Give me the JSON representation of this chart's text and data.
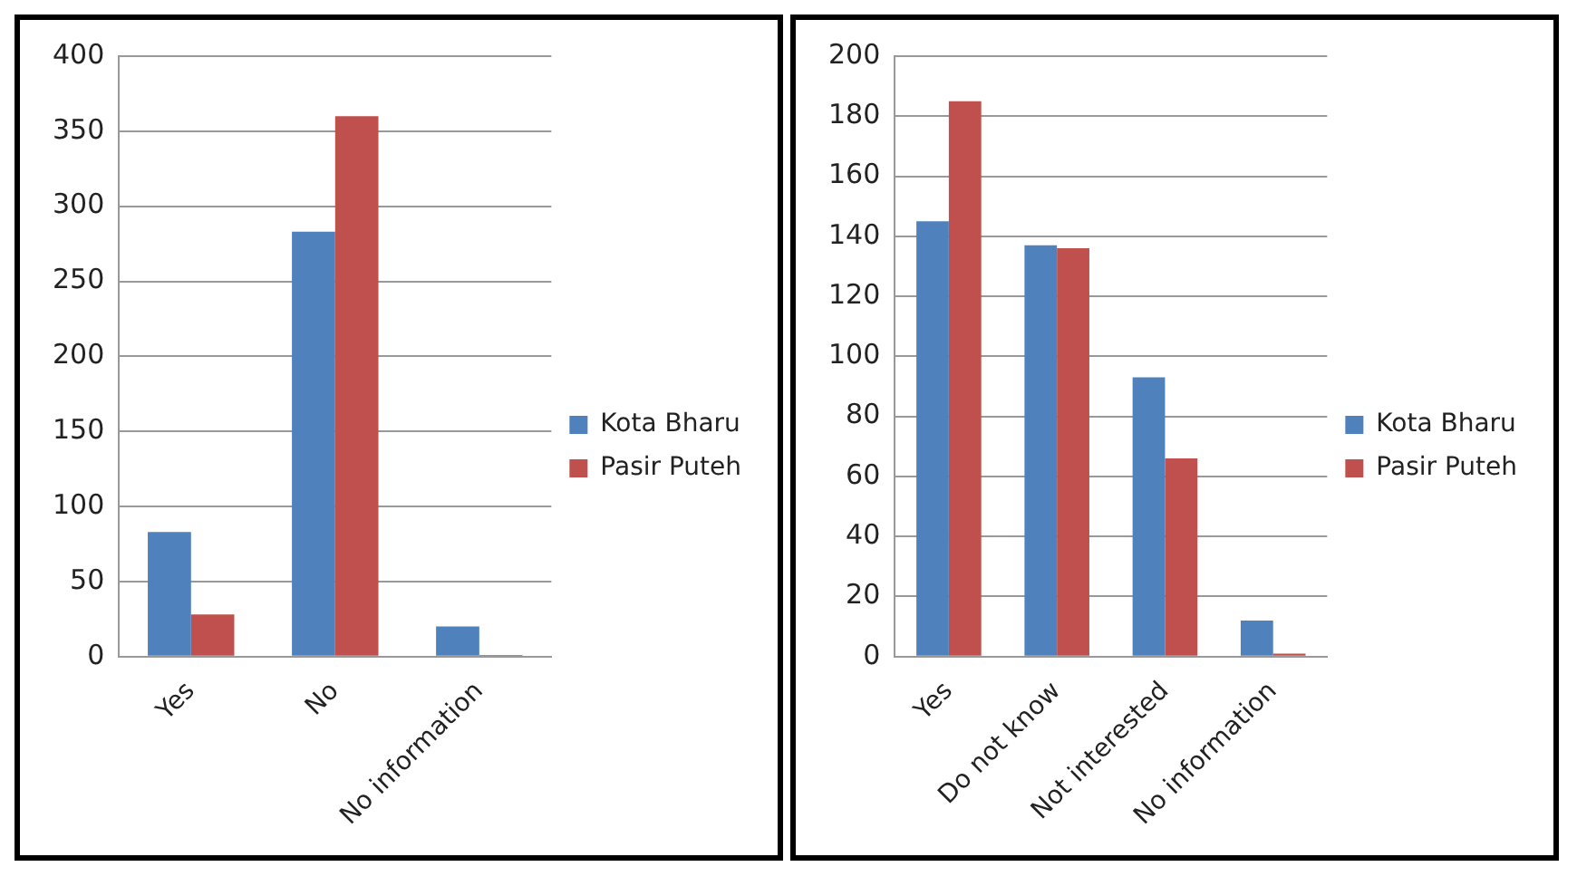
{
  "chart_data": [
    {
      "type": "bar",
      "categories": [
        "Yes",
        "No",
        "No information"
      ],
      "series": [
        {
          "name": "Kota Bharu",
          "color": "#4f81bd",
          "values": [
            83,
            283,
            20
          ]
        },
        {
          "name": "Pasir Puteh",
          "color": "#c0504d",
          "values": [
            28,
            360,
            1
          ]
        }
      ],
      "ylim": [
        0,
        400
      ],
      "yticks": [
        0,
        50,
        100,
        150,
        200,
        250,
        300,
        350,
        400
      ],
      "grid": "y",
      "legend": "right"
    },
    {
      "type": "bar",
      "categories": [
        "Yes",
        "Do not know",
        "Not interested",
        "No information"
      ],
      "series": [
        {
          "name": "Kota Bharu",
          "color": "#4f81bd",
          "values": [
            145,
            137,
            93,
            12
          ]
        },
        {
          "name": "Pasir Puteh",
          "color": "#c0504d",
          "values": [
            185,
            136,
            66,
            1
          ]
        }
      ],
      "ylim": [
        0,
        200
      ],
      "yticks": [
        0,
        20,
        40,
        60,
        80,
        100,
        120,
        140,
        160,
        180,
        200
      ],
      "grid": "y",
      "legend": "right"
    }
  ]
}
